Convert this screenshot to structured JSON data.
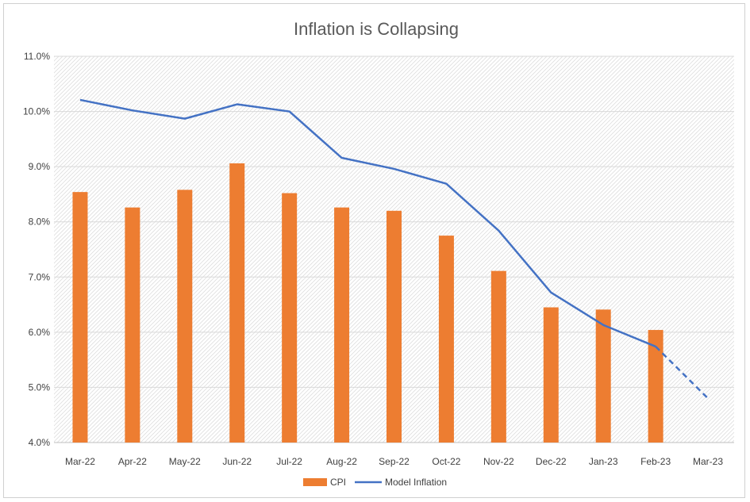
{
  "chart_data": {
    "type": "bar",
    "title": "Inflation is Collapsing",
    "xlabel": "",
    "ylabel": "",
    "categories": [
      "Mar-22",
      "Apr-22",
      "May-22",
      "Jun-22",
      "Jul-22",
      "Aug-22",
      "Sep-22",
      "Oct-22",
      "Nov-22",
      "Dec-22",
      "Jan-23",
      "Feb-23",
      "Mar-23"
    ],
    "y_tick_labels": [
      "4.0%",
      "5.0%",
      "6.0%",
      "7.0%",
      "8.0%",
      "9.0%",
      "10.0%",
      "11.0%"
    ],
    "ylim": [
      4.0,
      11.0
    ],
    "grid": true,
    "legend_position": "bottom",
    "series": [
      {
        "name": "CPI",
        "type": "bar",
        "color": "#ED7D31",
        "values": [
          8.54,
          8.26,
          8.58,
          9.06,
          8.52,
          8.26,
          8.2,
          7.75,
          7.11,
          6.45,
          6.41,
          6.04,
          null
        ]
      },
      {
        "name": "Model Inflation",
        "type": "line",
        "color": "#4472C4",
        "dashed_from_index": 11,
        "values": [
          10.21,
          10.02,
          9.87,
          10.13,
          10.0,
          9.16,
          8.96,
          8.69,
          7.84,
          6.72,
          6.13,
          5.74,
          4.8
        ]
      }
    ]
  }
}
